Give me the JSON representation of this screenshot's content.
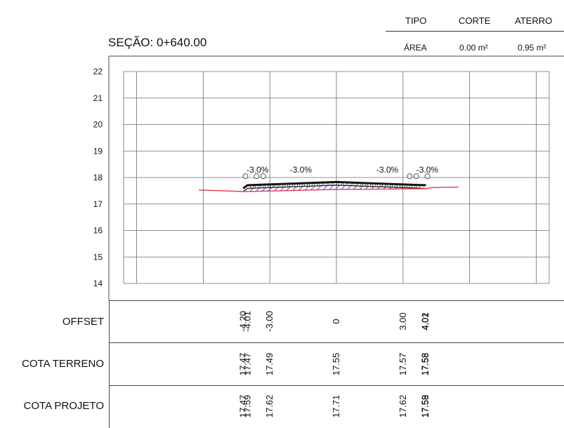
{
  "summary": {
    "headers": {
      "tipo": "TIPO",
      "corte": "CORTE",
      "aterro": "ATERRO"
    },
    "area_label": "ÁREA",
    "corte_value": "0.00 m²",
    "aterro_value": "0.95 m²"
  },
  "section_title": "SEÇÃO: 0+640.00",
  "chart_data": {
    "type": "line",
    "y_ticks": [
      "22",
      "21",
      "20",
      "19",
      "18",
      "17",
      "16",
      "15",
      "14"
    ],
    "ylim": [
      14,
      22
    ],
    "grid": true,
    "series": [
      {
        "x": [
          -6.2,
          -4.2,
          -4.01,
          -3.0,
          0,
          3.0,
          4.01,
          4.02,
          4.3,
          5.5
        ],
        "y": [
          17.53,
          17.47,
          17.47,
          17.49,
          17.55,
          17.57,
          17.58,
          17.58,
          17.62,
          17.64
        ]
      },
      {
        "x": [
          -4.2,
          -4.01,
          -3.0,
          0,
          3.0,
          4.01,
          4.02
        ],
        "y": [
          17.47,
          17.59,
          17.62,
          17.71,
          17.62,
          17.59,
          17.58
        ]
      }
    ],
    "slope_labels": [
      "-3.0%",
      "-3.0%",
      "-3.0%",
      "-3.0%"
    ]
  },
  "table": {
    "rows": [
      {
        "label": "OFFSET",
        "values": [
          "-4.20",
          "-4.01",
          "-3.00",
          "0",
          "3.00",
          "4.01",
          "4.02"
        ]
      },
      {
        "label": "COTA TERRENO",
        "values": [
          "17.47",
          "17.47",
          "17.49",
          "17.55",
          "17.57",
          "17.58",
          "17.58"
        ]
      },
      {
        "label": "COTA PROJETO",
        "values": [
          "17.47",
          "17.59",
          "17.62",
          "17.71",
          "17.62",
          "17.59",
          "17.58"
        ]
      }
    ]
  },
  "colors": {
    "terrain": "#e8454f",
    "fill_hatch": "#2b2bd6",
    "grid": "#6d6d6d",
    "platform": "#111111"
  }
}
